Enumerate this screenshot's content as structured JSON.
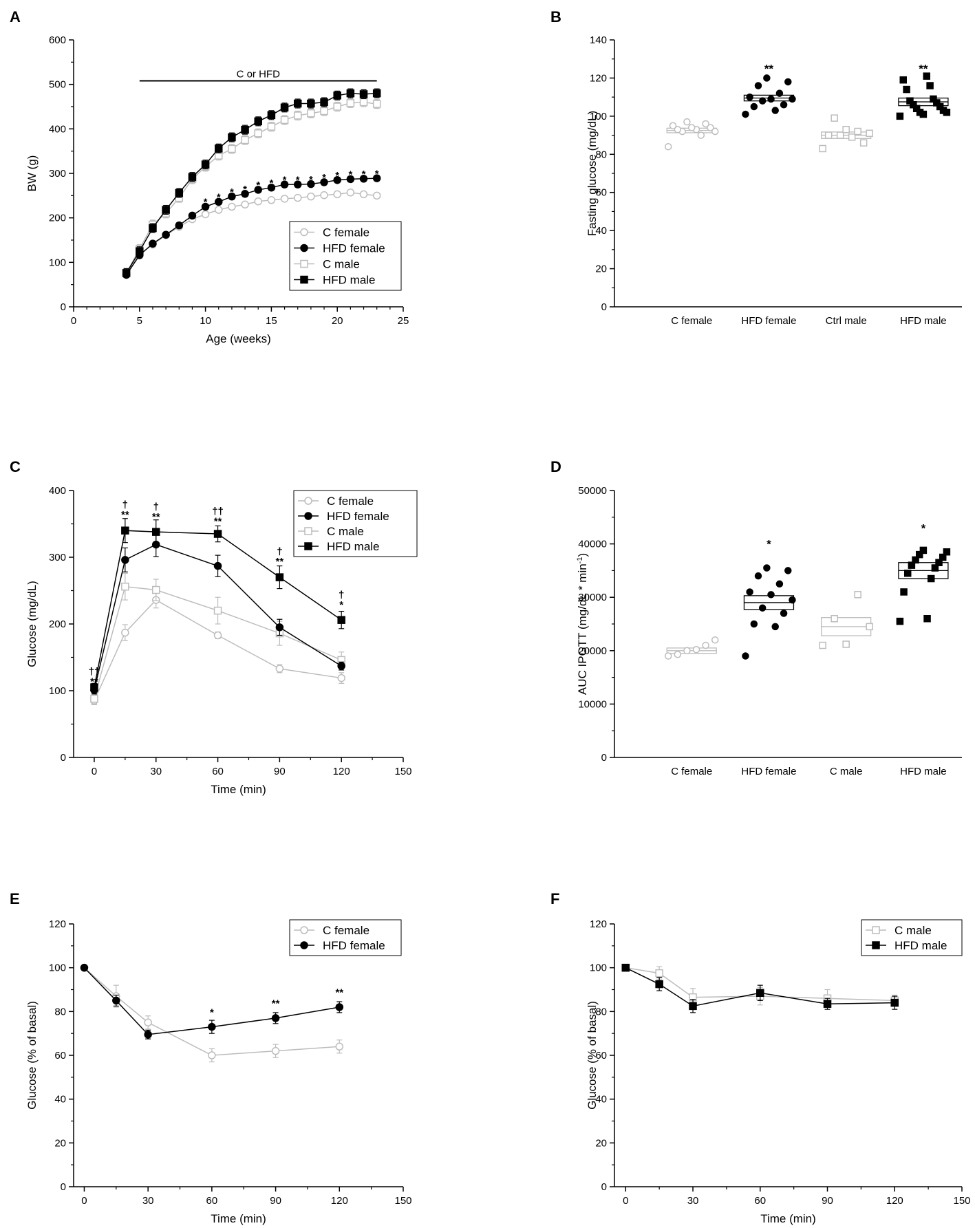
{
  "colors": {
    "dark": "#000000",
    "light": "#bcbcbc"
  },
  "chart_data": [
    {
      "panel": "A",
      "type": "line",
      "xlabel": "Age (weeks)",
      "ylabel": "BW (g)",
      "xlim": [
        0,
        25
      ],
      "ylim": [
        0,
        600
      ],
      "xticks": [
        0,
        5,
        10,
        15,
        20,
        25
      ],
      "yticks": [
        0,
        100,
        200,
        300,
        400,
        500,
        600
      ],
      "bar_annotation": {
        "text": "C or HFD",
        "x_start": 5,
        "x_end": 23,
        "y": 508
      },
      "x": [
        4,
        5,
        6,
        7,
        8,
        9,
        10,
        11,
        12,
        13,
        14,
        15,
        16,
        17,
        18,
        19,
        20,
        21,
        22,
        23
      ],
      "series": [
        {
          "name": "C female",
          "color": "light",
          "marker": "circle-open",
          "values": [
            74,
            118,
            140,
            161,
            180,
            197,
            208,
            218,
            225,
            230,
            237,
            240,
            243,
            245,
            248,
            251,
            253,
            257,
            253,
            250
          ],
          "err": 5
        },
        {
          "name": "HFD female",
          "color": "dark",
          "marker": "circle-filled",
          "values": [
            72,
            116,
            142,
            162,
            183,
            205,
            225,
            236,
            248,
            254,
            263,
            268,
            275,
            275,
            276,
            280,
            285,
            287,
            288,
            289
          ],
          "err": 6
        },
        {
          "name": "C male",
          "color": "light",
          "marker": "square-open",
          "values": [
            76,
            130,
            185,
            210,
            245,
            287,
            315,
            340,
            355,
            375,
            390,
            405,
            420,
            430,
            435,
            440,
            450,
            458,
            460,
            456
          ],
          "err": 10
        },
        {
          "name": "HFD male",
          "color": "dark",
          "marker": "square-filled",
          "values": [
            76,
            125,
            177,
            218,
            256,
            292,
            320,
            356,
            381,
            398,
            417,
            431,
            448,
            457,
            457,
            460,
            475,
            480,
            478,
            480
          ],
          "err": 10
        }
      ],
      "annotations": [
        {
          "x": 10,
          "y": 237,
          "text": "*"
        },
        {
          "x": 11,
          "y": 248,
          "text": "*"
        },
        {
          "x": 12,
          "y": 260,
          "text": "*"
        },
        {
          "x": 13,
          "y": 266,
          "text": "*"
        },
        {
          "x": 14,
          "y": 275,
          "text": "*"
        },
        {
          "x": 15,
          "y": 280,
          "text": "*"
        },
        {
          "x": 16,
          "y": 287,
          "text": "*"
        },
        {
          "x": 17,
          "y": 287,
          "text": "*"
        },
        {
          "x": 18,
          "y": 288,
          "text": "*"
        },
        {
          "x": 19,
          "y": 292,
          "text": "*"
        },
        {
          "x": 20,
          "y": 297,
          "text": "*"
        },
        {
          "x": 21,
          "y": 299,
          "text": "*"
        },
        {
          "x": 22,
          "y": 300,
          "text": "*"
        },
        {
          "x": 23,
          "y": 301,
          "text": "*"
        }
      ]
    },
    {
      "panel": "B",
      "type": "scatter",
      "ylabel": "Fasting glucose (mg/dL)",
      "xlabel": "",
      "ylim": [
        0,
        140
      ],
      "yticks": [
        0,
        20,
        40,
        60,
        80,
        100,
        120,
        140
      ],
      "groups": [
        {
          "name": "C female",
          "color": "light",
          "marker": "circle-open",
          "mean": 92.5,
          "sem": 1.2,
          "points": [
            84,
            90,
            92,
            92,
            93,
            93,
            94,
            94,
            95,
            96,
            97
          ]
        },
        {
          "name": "HFD female",
          "color": "dark",
          "marker": "circle-filled",
          "mean": 109.5,
          "sem": 1.5,
          "points": [
            101,
            103,
            105,
            106,
            108,
            109,
            109,
            110,
            112,
            116,
            118,
            120
          ]
        },
        {
          "name": "Ctrl male",
          "color": "light",
          "marker": "square-open",
          "mean": 90,
          "sem": 1.7,
          "points": [
            83,
            86,
            89,
            90,
            90,
            91,
            92,
            93,
            99
          ]
        },
        {
          "name": "HFD male",
          "color": "dark",
          "marker": "square-filled",
          "mean": 107.5,
          "sem": 2,
          "points": [
            100,
            101,
            102,
            102,
            103,
            104,
            105,
            106,
            107,
            108,
            109,
            114,
            116,
            119,
            121
          ]
        }
      ],
      "annotations": [
        {
          "group": 1,
          "y": 125,
          "text": "**"
        },
        {
          "group": 3,
          "y": 125,
          "text": "**"
        }
      ]
    },
    {
      "panel": "C",
      "type": "line",
      "xlabel": "Time (min)",
      "ylabel": "Glucose (mg/dL)",
      "xlim": [
        -10,
        150
      ],
      "ylim": [
        0,
        400
      ],
      "xticks": [
        0,
        30,
        60,
        90,
        120,
        150
      ],
      "yticks": [
        0,
        100,
        200,
        300,
        400
      ],
      "x": [
        0,
        15,
        30,
        60,
        90,
        120
      ],
      "series": [
        {
          "name": "C female",
          "color": "light",
          "marker": "circle-open",
          "values": [
            85,
            187,
            236,
            183,
            133,
            119
          ],
          "err": [
            6,
            12,
            12,
            5,
            6,
            8
          ]
        },
        {
          "name": "HFD female",
          "color": "dark",
          "marker": "circle-filled",
          "values": [
            101,
            296,
            319,
            287,
            195,
            137
          ],
          "err": [
            6,
            18,
            18,
            16,
            12,
            6
          ]
        },
        {
          "name": "C male",
          "color": "light",
          "marker": "square-open",
          "values": [
            88,
            256,
            251,
            220,
            186,
            146
          ],
          "err": [
            8,
            20,
            16,
            20,
            18,
            12
          ]
        },
        {
          "name": "HFD male",
          "color": "dark",
          "marker": "square-filled",
          "values": [
            105,
            340,
            338,
            335,
            270,
            206
          ],
          "err": [
            6,
            18,
            18,
            12,
            17,
            13
          ]
        }
      ],
      "annotations": [
        {
          "x": 0,
          "y": 115,
          "text": "**"
        },
        {
          "x": 0,
          "y": 130,
          "text": "††"
        },
        {
          "x": 15,
          "y": 365,
          "text": "**"
        },
        {
          "x": 15,
          "y": 380,
          "text": "†"
        },
        {
          "x": 30,
          "y": 362,
          "text": "**"
        },
        {
          "x": 30,
          "y": 377,
          "text": "†"
        },
        {
          "x": 60,
          "y": 355,
          "text": "**"
        },
        {
          "x": 60,
          "y": 370,
          "text": "††"
        },
        {
          "x": 90,
          "y": 295,
          "text": "**"
        },
        {
          "x": 90,
          "y": 310,
          "text": "†"
        },
        {
          "x": 120,
          "y": 230,
          "text": "*"
        },
        {
          "x": 120,
          "y": 245,
          "text": "†"
        }
      ]
    },
    {
      "panel": "D",
      "type": "scatter",
      "ylabel": "AUC IPGTT (mg/dL * min-1)",
      "ylabel_main": "AUC IPGTT (mg/dL * min",
      "ylabel_sup": "-1",
      "ylabel_end": ")",
      "xlabel": "",
      "ylim": [
        0,
        50000
      ],
      "yticks": [
        0,
        10000,
        20000,
        30000,
        40000,
        50000
      ],
      "groups": [
        {
          "name": "C female",
          "color": "light",
          "marker": "circle-open",
          "mean": 20000,
          "sem": 500,
          "points": [
            19000,
            19300,
            20000,
            20200,
            21000,
            22000
          ]
        },
        {
          "name": "HFD female",
          "color": "dark",
          "marker": "circle-filled",
          "mean": 29000,
          "sem": 1300,
          "points": [
            19000,
            24500,
            25000,
            27000,
            28000,
            29500,
            30500,
            31000,
            32500,
            34000,
            35000,
            35500
          ]
        },
        {
          "name": "C male",
          "color": "light",
          "marker": "square-open",
          "mean": 24500,
          "sem": 1700,
          "points": [
            21000,
            21200,
            24500,
            26000,
            30500
          ]
        },
        {
          "name": "HFD male",
          "color": "dark",
          "marker": "square-filled",
          "mean": 35000,
          "sem": 1500,
          "points": [
            25500,
            26000,
            31000,
            33500,
            34500,
            35500,
            36000,
            36500,
            37000,
            37500,
            38000,
            38500,
            38800
          ]
        }
      ],
      "annotations": [
        {
          "group": 1,
          "y": 40000,
          "text": "*"
        },
        {
          "group": 3,
          "y": 43000,
          "text": "*"
        }
      ]
    },
    {
      "panel": "E",
      "type": "line",
      "xlabel": "Time (min)",
      "ylabel": "Glucose (% of basal)",
      "xlim": [
        -5,
        150
      ],
      "ylim": [
        0,
        120
      ],
      "xticks": [
        0,
        30,
        60,
        90,
        120,
        150
      ],
      "yticks": [
        0,
        20,
        40,
        60,
        80,
        100,
        120
      ],
      "x": [
        0,
        15,
        30,
        60,
        90,
        120
      ],
      "series": [
        {
          "name": "C female",
          "color": "light",
          "marker": "circle-open",
          "values": [
            100,
            87,
            75,
            60,
            62,
            64
          ],
          "err": [
            0,
            5,
            3,
            3,
            3,
            3
          ]
        },
        {
          "name": "HFD female",
          "color": "dark",
          "marker": "circle-filled",
          "values": [
            100,
            85,
            69.5,
            73,
            77,
            82
          ],
          "err": [
            0,
            2.5,
            2,
            3,
            2.5,
            2.5
          ]
        }
      ],
      "annotations": [
        {
          "x": 60,
          "y": 80,
          "text": "*"
        },
        {
          "x": 90,
          "y": 84,
          "text": "**"
        },
        {
          "x": 120,
          "y": 89,
          "text": "**"
        }
      ]
    },
    {
      "panel": "F",
      "type": "line",
      "xlabel": "Time (min)",
      "ylabel": "Glucose (% of basal)",
      "xlim": [
        -5,
        150
      ],
      "ylim": [
        0,
        120
      ],
      "xticks": [
        0,
        30,
        60,
        90,
        120,
        150
      ],
      "yticks": [
        0,
        20,
        40,
        60,
        80,
        100,
        120
      ],
      "x": [
        0,
        15,
        30,
        60,
        90,
        120
      ],
      "series": [
        {
          "name": "C male",
          "color": "light",
          "marker": "square-open",
          "values": [
            100,
            97.5,
            86.5,
            87,
            86,
            85
          ],
          "err": [
            0,
            3,
            4,
            4,
            4,
            2.5
          ]
        },
        {
          "name": "HFD male",
          "color": "dark",
          "marker": "square-filled",
          "values": [
            100,
            92.5,
            82.5,
            88.5,
            83.5,
            84
          ],
          "err": [
            0,
            3,
            3,
            3.5,
            2.5,
            3
          ]
        }
      ],
      "annotations": []
    }
  ]
}
